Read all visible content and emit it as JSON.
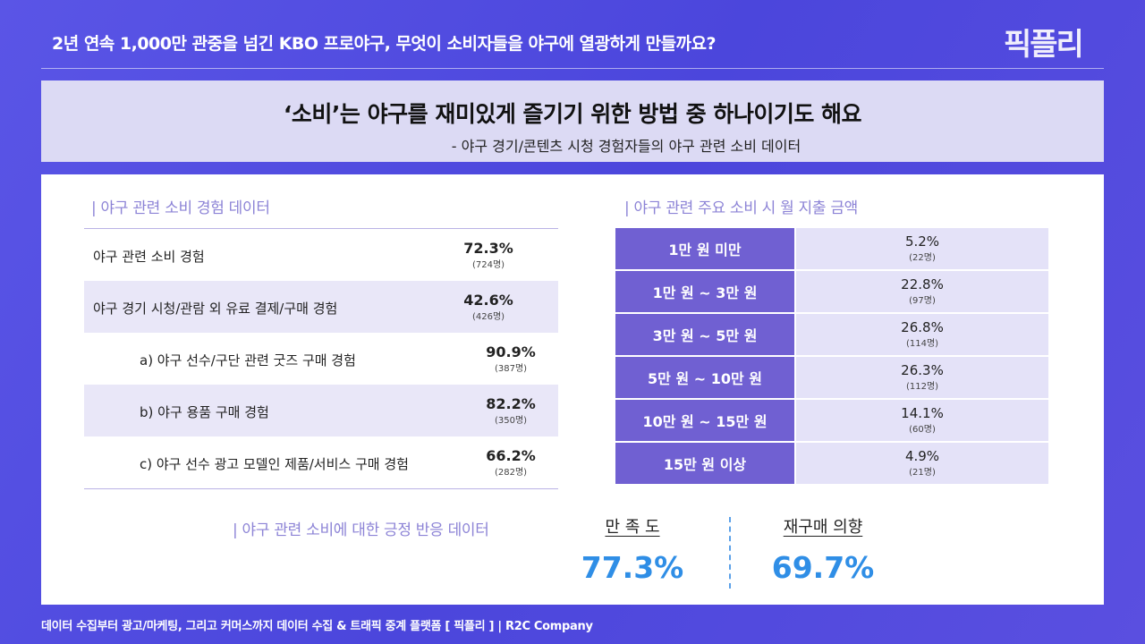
{
  "header": {
    "title": "2년 연속 1,000만 관중을 넘긴 KBO 프로야구, 무엇이 소비자들을 야구에 열광하게 만들까요?",
    "logo": "픽플리"
  },
  "band": {
    "title": "‘소비’는 야구를 재미있게 즐기기 위한 방법 중 하나이기도 해요",
    "subtitle": "- 야구 경기/콘텐츠 시청 경험자들의 야구 관련 소비 데이터"
  },
  "left": {
    "heading": "| 야구 관련 소비 경험 데이터",
    "rows": [
      {
        "label": "야구 관련 소비 경험",
        "pct": "72.3%",
        "n": "(724명)"
      },
      {
        "label": "야구 경기 시청/관람 외 유료 결제/구매 경험",
        "pct": "42.6%",
        "n": "(426명)"
      },
      {
        "label": "a)  야구 선수/구단 관련 굿즈 구매 경험",
        "pct": "90.9%",
        "n": "(387명)"
      },
      {
        "label": "b) 야구 용품 구매 경험",
        "pct": "82.2%",
        "n": "(350명)"
      },
      {
        "label": "c) 야구 선수 광고 모델인 제품/서비스 구매 경험",
        "pct": "66.2%",
        "n": "(282명)"
      }
    ]
  },
  "right": {
    "heading": "| 야구 관련 주요 소비 시 월 지출 금액",
    "rows": [
      {
        "label": "1만 원 미만",
        "pct": "5.2%",
        "n": "(22명)"
      },
      {
        "label": "1만 원  ~ 3만 원",
        "pct": "22.8%",
        "n": "(97명)"
      },
      {
        "label": "3만 원  ~ 5만 원",
        "pct": "26.8%",
        "n": "(114명)"
      },
      {
        "label": "5만 원  ~ 10만 원",
        "pct": "26.3%",
        "n": "(112명)"
      },
      {
        "label": "10만 원  ~ 15만 원",
        "pct": "14.1%",
        "n": "(60명)"
      },
      {
        "label": "15만 원 이상",
        "pct": "4.9%",
        "n": "(21명)"
      }
    ]
  },
  "bottom": {
    "heading": "| 야구 관련 소비에 대한 긍정 반응 데이터",
    "satisfaction_label": "만 족 도",
    "satisfaction": "77.3%",
    "repurchase_label": "재구매 의향",
    "repurchase": "69.7%"
  },
  "footer": "데이터 수집부터 광고/마케팅, 그리고 커머스까지 데이터 수집 & 트래픽 중계 플랫폼 [ 픽플리 ]  |  R2C Company",
  "colors": {
    "accent": "#7060d2",
    "value": "#2f8ee6",
    "band": "#dcdaf4"
  }
}
